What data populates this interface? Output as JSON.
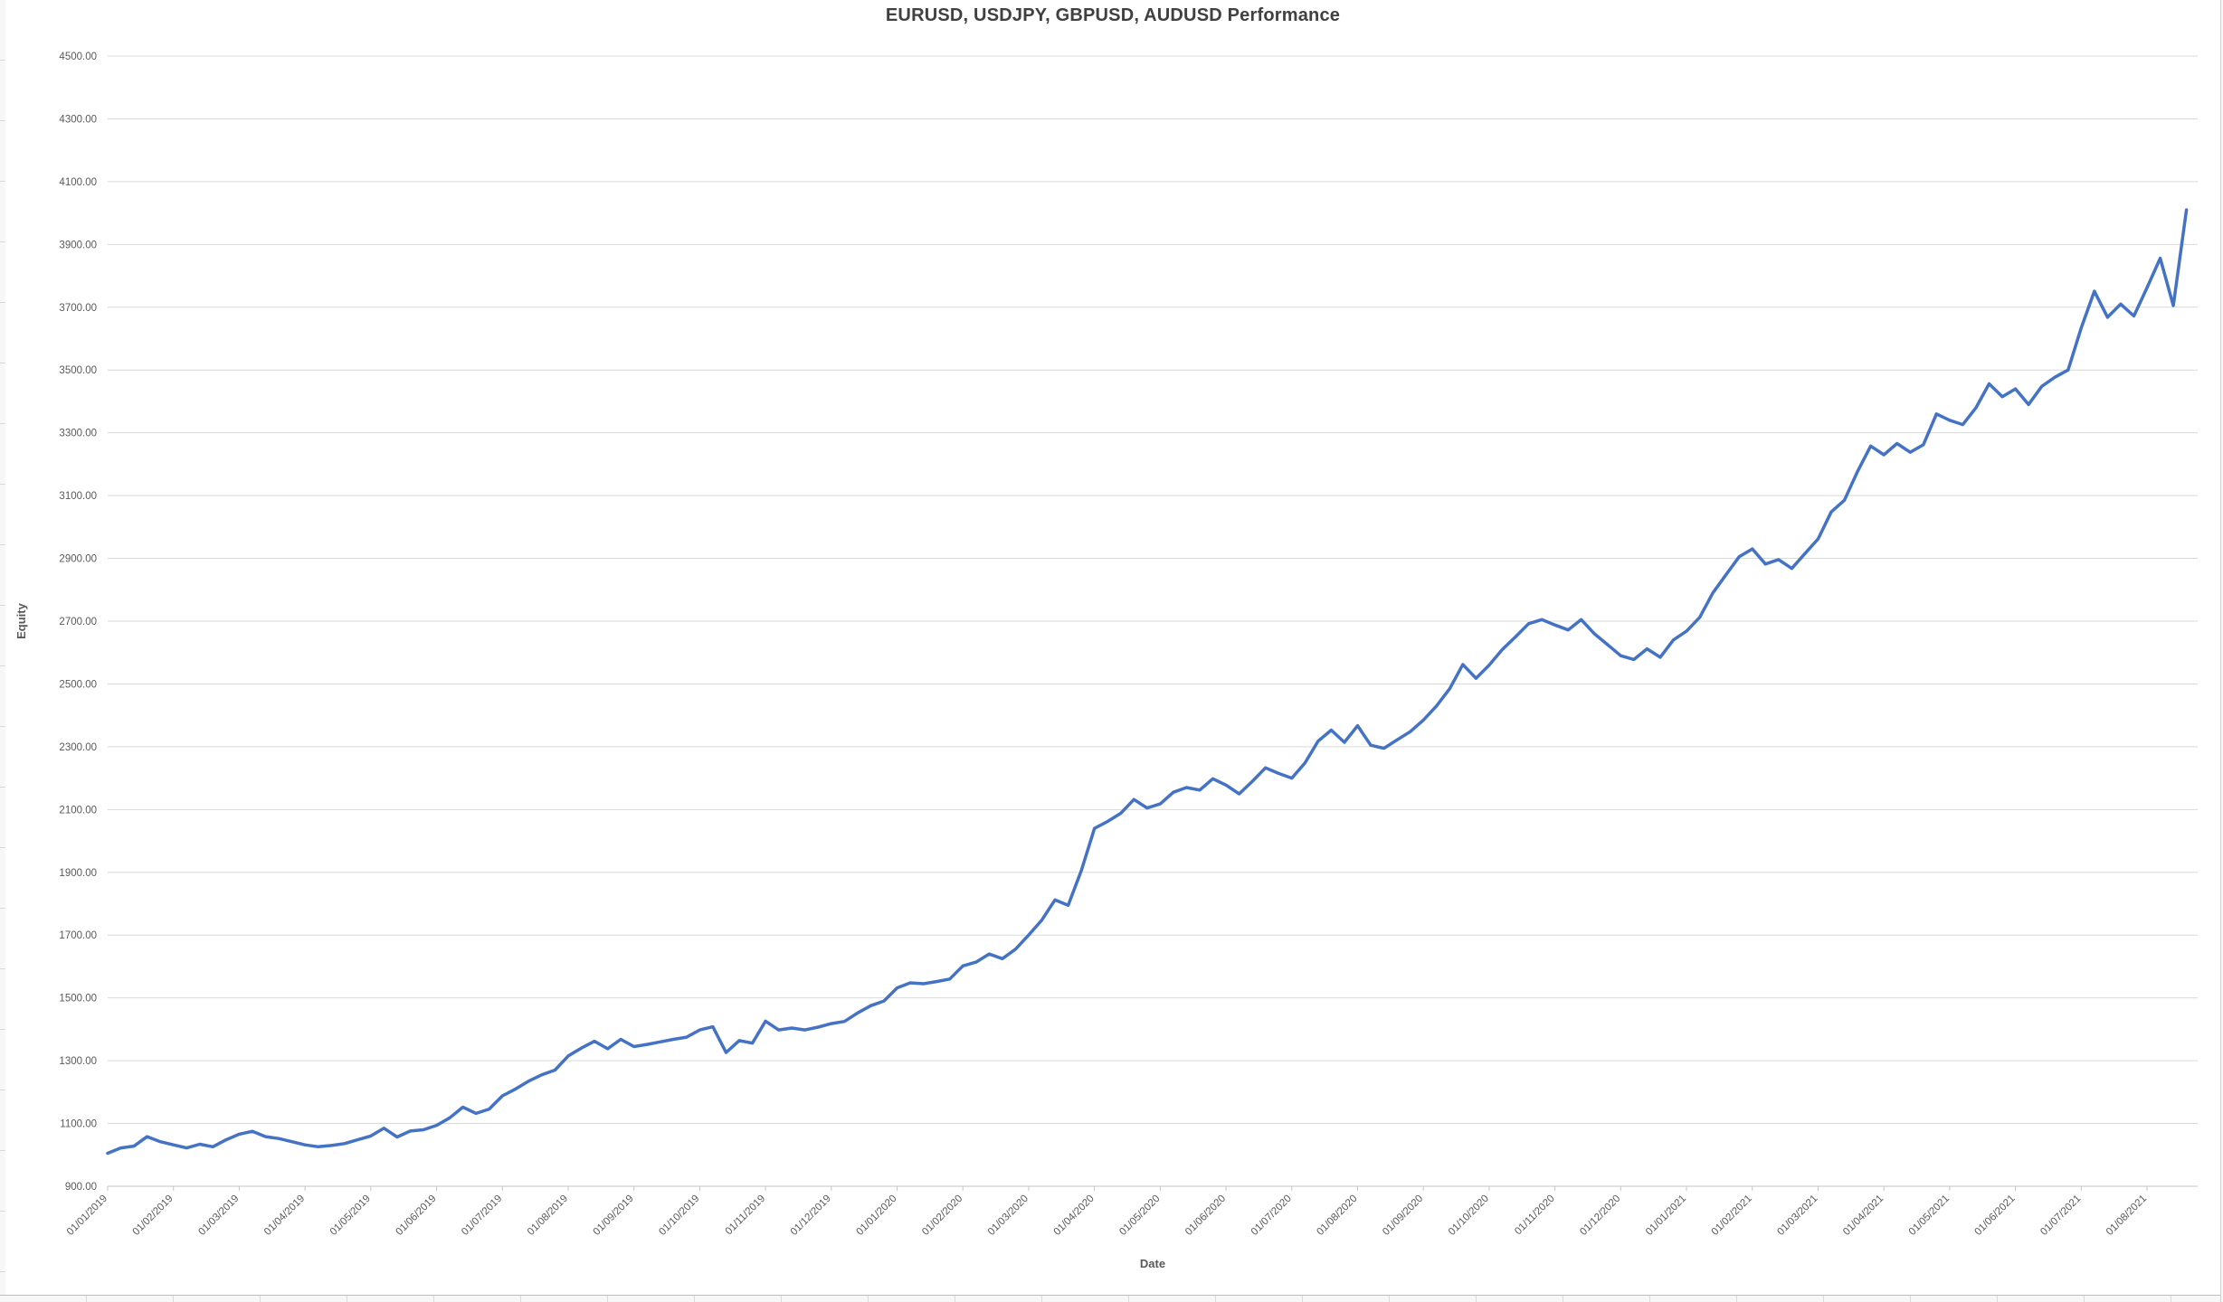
{
  "chart_title": "EURUSD, USDJPY, GBPUSD, AUDUSD Performance",
  "y_axis": {
    "title": "Equity",
    "tick_labels": [
      "4500.00",
      "4300.00",
      "4100.00",
      "3900.00",
      "3700.00",
      "3500.00",
      "3300.00",
      "3100.00",
      "2900.00",
      "2700.00",
      "2500.00",
      "2300.00",
      "2100.00",
      "1900.00",
      "1700.00",
      "1500.00",
      "1300.00",
      "1100.00",
      "900.00"
    ]
  },
  "x_axis": {
    "title": "Date",
    "tick_labels": [
      "01/01/2019",
      "01/02/2019",
      "01/03/2019",
      "01/04/2019",
      "01/05/2019",
      "01/06/2019",
      "01/07/2019",
      "01/08/2019",
      "01/09/2019",
      "01/10/2019",
      "01/11/2019",
      "01/12/2019",
      "01/01/2020",
      "01/02/2020",
      "01/03/2020",
      "01/04/2020",
      "01/05/2020",
      "01/06/2020",
      "01/07/2020",
      "01/08/2020",
      "01/09/2020",
      "01/10/2020",
      "01/11/2020",
      "01/12/2020",
      "01/01/2021",
      "01/02/2021",
      "01/03/2021",
      "01/04/2021",
      "01/05/2021",
      "01/06/2021",
      "01/07/2021",
      "01/08/2021"
    ]
  },
  "chart_data": {
    "type": "line",
    "title": "EURUSD, USDJPY, GBPUSD, AUDUSD Performance",
    "xlabel": "Date",
    "ylabel": "Equity",
    "ylim": [
      900,
      4500
    ],
    "y_tick_step": 200,
    "grid": "horizontal",
    "legend": "none",
    "line_color": "#4472C4",
    "gridline_color": "#d9d9d9",
    "axis_text_color": "#595959",
    "x_start_label": "01/01/2019",
    "x_end_of_data": "late Aug 2021",
    "points_per_month": 5,
    "series": [
      {
        "name": "Equity",
        "values": [
          1005,
          1022,
          1028,
          1058,
          1042,
          1032,
          1022,
          1034,
          1026,
          1048,
          1066,
          1075,
          1058,
          1052,
          1042,
          1032,
          1026,
          1030,
          1036,
          1048,
          1060,
          1085,
          1057,
          1076,
          1080,
          1094,
          1118,
          1152,
          1132,
          1146,
          1188,
          1210,
          1235,
          1255,
          1270,
          1315,
          1340,
          1362,
          1338,
          1368,
          1345,
          1352,
          1360,
          1368,
          1375,
          1398,
          1408,
          1326,
          1364,
          1356,
          1426,
          1398,
          1404,
          1398,
          1407,
          1418,
          1425,
          1452,
          1475,
          1490,
          1532,
          1548,
          1545,
          1552,
          1560,
          1602,
          1614,
          1640,
          1625,
          1655,
          1700,
          1748,
          1812,
          1795,
          1905,
          2040,
          2062,
          2088,
          2132,
          2105,
          2118,
          2155,
          2170,
          2162,
          2198,
          2178,
          2150,
          2190,
          2233,
          2215,
          2200,
          2248,
          2318,
          2353,
          2314,
          2367,
          2305,
          2295,
          2322,
          2348,
          2385,
          2430,
          2485,
          2562,
          2518,
          2560,
          2610,
          2650,
          2692,
          2705,
          2688,
          2672,
          2705,
          2660,
          2625,
          2590,
          2578,
          2612,
          2585,
          2640,
          2668,
          2712,
          2790,
          2848,
          2905,
          2930,
          2882,
          2896,
          2868,
          2915,
          2962,
          3048,
          3085,
          3177,
          3258,
          3230,
          3266,
          3238,
          3262,
          3360,
          3340,
          3326,
          3380,
          3456,
          3415,
          3440,
          3390,
          3448,
          3477,
          3500,
          3634,
          3751,
          3668,
          3710,
          3672,
          3762,
          3856,
          3705,
          4010
        ]
      }
    ]
  }
}
